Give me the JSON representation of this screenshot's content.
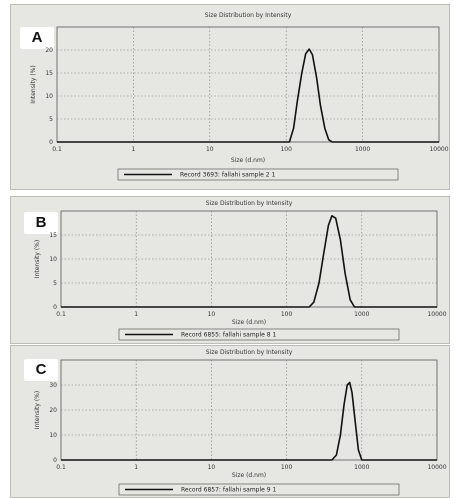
{
  "chart_data": [
    {
      "panel_label": "A",
      "type": "line",
      "title": "Size Distribution by Intensity",
      "xlabel": "Size (d.nm)",
      "ylabel": "Intensity (%)",
      "x_scale": "log",
      "xlim": [
        0.1,
        10000
      ],
      "ylim": [
        0,
        25
      ],
      "x_ticks": [
        "0.1",
        "1",
        "10",
        "100",
        "1000",
        "10000"
      ],
      "y_ticks": [
        "0",
        "5",
        "10",
        "15",
        "20"
      ],
      "grid": true,
      "legend": "Record 3693: fallahi sample 2 1",
      "series": [
        {
          "x": [
            0.1,
            100,
            110,
            125,
            140,
            160,
            180,
            200,
            220,
            250,
            280,
            320,
            360,
            400,
            10000
          ],
          "y": [
            0,
            0,
            0,
            3,
            9,
            15,
            19.2,
            20.2,
            19,
            14,
            8,
            3,
            0.5,
            0,
            0
          ]
        }
      ]
    },
    {
      "panel_label": "B",
      "type": "line",
      "title": "Size Distribution by Intensity",
      "xlabel": "Size (d.nm)",
      "ylabel": "Intensity (%)",
      "x_scale": "log",
      "xlim": [
        0.1,
        10000
      ],
      "ylim": [
        0,
        20
      ],
      "x_ticks": [
        "0.1",
        "1",
        "10",
        "100",
        "1000",
        "10000"
      ],
      "y_ticks": [
        "0",
        "5",
        "10",
        "15"
      ],
      "grid": true,
      "legend": "Record 6855: fallahi sample 8 1",
      "series": [
        {
          "x": [
            0.1,
            200,
            230,
            270,
            310,
            360,
            400,
            450,
            520,
            600,
            700,
            800,
            10000
          ],
          "y": [
            0,
            0,
            1,
            5,
            11,
            17,
            19,
            18.5,
            14,
            7,
            1.5,
            0,
            0
          ]
        }
      ]
    },
    {
      "panel_label": "C",
      "type": "line",
      "title": "Size Distribution by Intensity",
      "xlabel": "Size (d.nm)",
      "ylabel": "Intensity (%)",
      "x_scale": "log",
      "xlim": [
        0.1,
        10000
      ],
      "ylim": [
        0,
        40
      ],
      "x_ticks": [
        "0.1",
        "1",
        "10",
        "100",
        "1000",
        "10000"
      ],
      "y_ticks": [
        "0",
        "10",
        "20",
        "30"
      ],
      "grid": true,
      "legend": "Record 6857: fallahi sample 9 1",
      "series": [
        {
          "x": [
            0.1,
            400,
            460,
            520,
            580,
            640,
            690,
            740,
            820,
            900,
            1000,
            10000
          ],
          "y": [
            0,
            0,
            2,
            10,
            22,
            30,
            31,
            27,
            15,
            4,
            0,
            0
          ]
        }
      ]
    }
  ]
}
